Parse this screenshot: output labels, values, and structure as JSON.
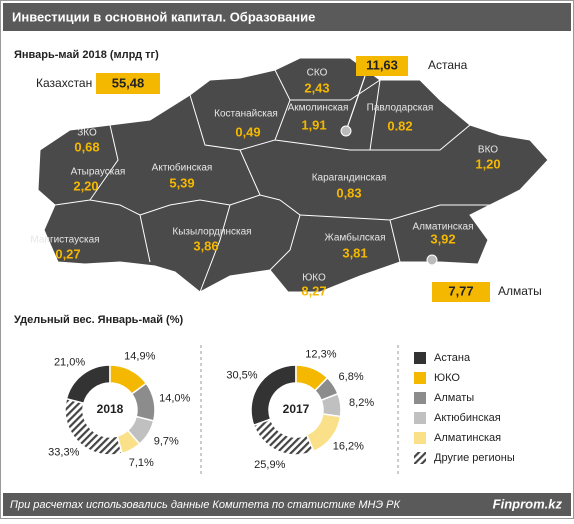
{
  "header": {
    "title": "Инвестиции в основной капитал. Образование"
  },
  "map": {
    "subtitle": "Январь-май  2018 (млрд тг)",
    "total": {
      "label": "Казахстан",
      "value": "55,48"
    },
    "astana": {
      "label": "Астана",
      "value": "11,63"
    },
    "almaty": {
      "label": "Алматы",
      "value": "7,77"
    },
    "regions": [
      {
        "name": "ЗКО",
        "value": "0,68"
      },
      {
        "name": "Атырауская",
        "value": "2,20"
      },
      {
        "name": "Мангистауская",
        "value": "0,27"
      },
      {
        "name": "Актюбинская",
        "value": "5,39"
      },
      {
        "name": "Костанайская",
        "value": "0,49"
      },
      {
        "name": "СКО",
        "value": "2,43"
      },
      {
        "name": "Акмолинская",
        "value": "1,91"
      },
      {
        "name": "Павлодарская",
        "value": "0.82"
      },
      {
        "name": "ВКО",
        "value": "1,20"
      },
      {
        "name": "Карагандинская",
        "value": "0,83"
      },
      {
        "name": "Кызылординская",
        "value": "3,86"
      },
      {
        "name": "Жамбылская",
        "value": "3,81"
      },
      {
        "name": "ЮКО",
        "value": "8,27"
      },
      {
        "name": "Алматинская",
        "value": "3,92"
      }
    ]
  },
  "section_title": "Удельный вес. Январь-май  (%)",
  "chart_data": [
    {
      "type": "donut",
      "title": "2018",
      "categories": [
        "Астана",
        "ЮКО",
        "Алматы",
        "Актюбинская",
        "Алматинская",
        "Другие регионы"
      ],
      "values": [
        21.0,
        14.9,
        14.0,
        9.7,
        7.1,
        33.3
      ],
      "value_labels": [
        "21,0%",
        "14,9%",
        "14,0%",
        "9,7%",
        "7,1%",
        "33,3%"
      ],
      "colors": [
        "#333333",
        "#f5b800",
        "#8c8c8c",
        "#c0c0c0",
        "#fbe08a",
        "#444444"
      ],
      "patterns": [
        null,
        null,
        null,
        null,
        null,
        "hatch"
      ]
    },
    {
      "type": "donut",
      "title": "2017",
      "categories": [
        "Астана",
        "ЮКО",
        "Алматы",
        "Актюбинская",
        "Алматинская",
        "Другие регионы"
      ],
      "values": [
        30.5,
        12.3,
        6.8,
        8.2,
        16.2,
        25.9
      ],
      "value_labels": [
        "30,5%",
        "12,3%",
        "6,8%",
        "8,2%",
        "16,2%",
        "25,9%"
      ],
      "colors": [
        "#333333",
        "#f5b800",
        "#8c8c8c",
        "#c0c0c0",
        "#fbe08a",
        "#444444"
      ],
      "patterns": [
        null,
        null,
        null,
        null,
        null,
        "hatch"
      ]
    }
  ],
  "footer": {
    "note": "При расчетах использовались данные  Комитета по статистике МНЭ РК",
    "brand": "Finprom.kz"
  }
}
